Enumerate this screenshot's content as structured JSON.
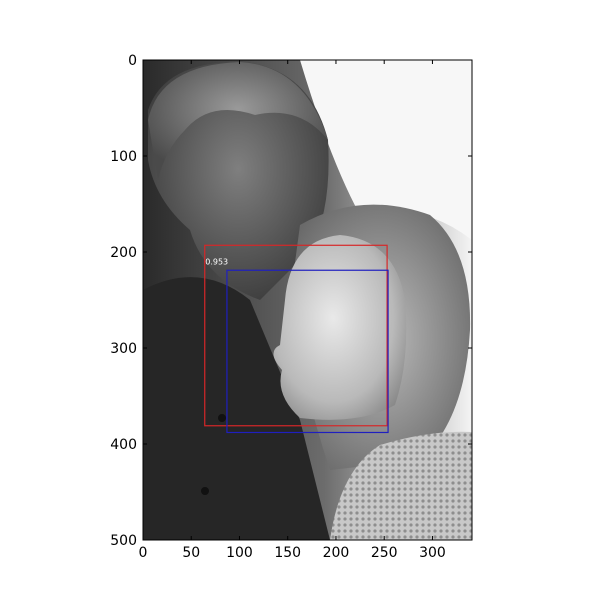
{
  "chart_data": {
    "type": "image",
    "image_description": "grayscale photo",
    "xlim": [
      0,
      341
    ],
    "ylim": [
      500,
      0
    ],
    "y_inverted": true,
    "x_ticks": [
      0,
      50,
      100,
      150,
      200,
      250,
      300
    ],
    "y_ticks": [
      0,
      100,
      200,
      300,
      400,
      500
    ],
    "x_tick_labels": [
      "0",
      "50",
      "100",
      "150",
      "200",
      "250",
      "300"
    ],
    "y_tick_labels": [
      "0",
      "100",
      "200",
      "300",
      "400",
      "500"
    ],
    "boxes": [
      {
        "name": "detection",
        "x1": 64,
        "y1": 193,
        "x2": 253,
        "y2": 381,
        "color": "#d62728",
        "score_label": "0.953"
      },
      {
        "name": "ground-truth",
        "x1": 87,
        "y1": 219,
        "x2": 254,
        "y2": 388,
        "color": "#1f1fbf",
        "score_label": ""
      }
    ],
    "grid": false,
    "colors": {
      "axes": "#000000",
      "score_text": "#ffffff"
    }
  }
}
